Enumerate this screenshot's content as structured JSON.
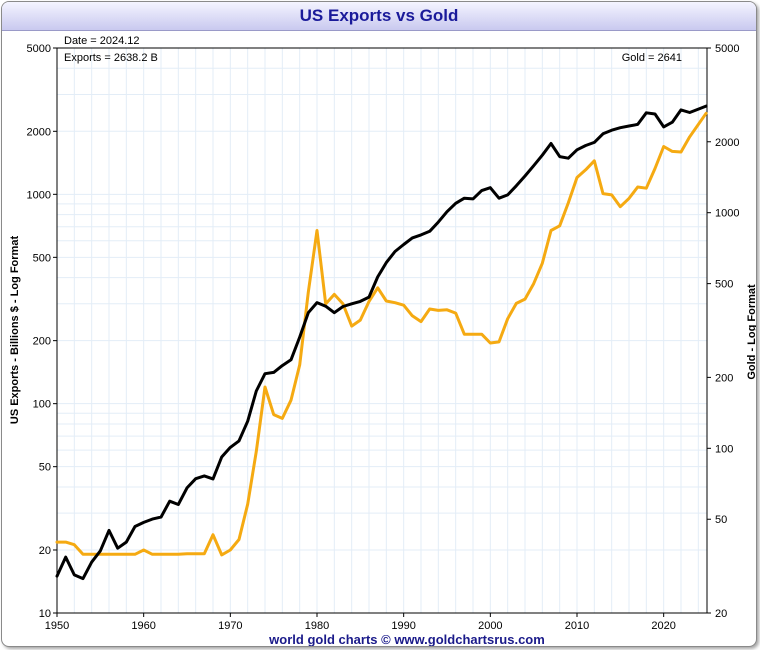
{
  "chart_data": {
    "type": "line",
    "title": "US Exports vs Gold",
    "ylabel_left": "US Exports - Billions $ - Log Format",
    "ylabel_right": "Gold - Log Format",
    "xlim": [
      1950,
      2025
    ],
    "ylim_left": [
      10,
      5000
    ],
    "ylim_right": [
      20,
      5000
    ],
    "scale": "log",
    "grid": true,
    "x_ticks": [
      1950,
      1960,
      1970,
      1980,
      1990,
      2000,
      2010,
      2020
    ],
    "left_ticks": [
      10,
      20,
      50,
      100,
      200,
      500,
      1000,
      2000,
      5000
    ],
    "right_ticks": [
      20,
      50,
      100,
      200,
      500,
      1000,
      2000,
      5000
    ],
    "annotations": {
      "date": "Date = 2024.12",
      "exports": "Exports = 2638.2 B",
      "gold": "Gold = 2641"
    },
    "series": [
      {
        "name": "US Exports",
        "axis": "left",
        "color": "#000000",
        "x": [
          1950,
          1951,
          1952,
          1953,
          1954,
          1955,
          1956,
          1957,
          1958,
          1959,
          1960,
          1961,
          1962,
          1963,
          1964,
          1965,
          1966,
          1967,
          1968,
          1969,
          1970,
          1971,
          1972,
          1973,
          1974,
          1975,
          1976,
          1977,
          1978,
          1979,
          1980,
          1981,
          1982,
          1983,
          1984,
          1985,
          1986,
          1987,
          1988,
          1989,
          1990,
          1991,
          1992,
          1993,
          1994,
          1995,
          1996,
          1997,
          1998,
          1999,
          2000,
          2001,
          2002,
          2003,
          2004,
          2005,
          2006,
          2007,
          2008,
          2009,
          2010,
          2011,
          2012,
          2013,
          2014,
          2015,
          2016,
          2017,
          2018,
          2019,
          2020,
          2021,
          2022,
          2023,
          2024.9
        ],
        "values": [
          15,
          18.5,
          15.2,
          14.6,
          17.5,
          19.8,
          24.8,
          20.4,
          21.8,
          25.9,
          27.1,
          28.1,
          28.7,
          34.2,
          33.0,
          39.6,
          43.8,
          45.2,
          43.7,
          55.6,
          61.8,
          66.4,
          82.5,
          115,
          139,
          141,
          152,
          162,
          208,
          272,
          304,
          292,
          272,
          291,
          300,
          308,
          323,
          403,
          472,
          533,
          576,
          619,
          640,
          666,
          737,
          826,
          906,
          958,
          951,
          1042,
          1075,
          958,
          994,
          1098,
          1223,
          1370,
          1538,
          1749,
          1515,
          1488,
          1631,
          1710,
          1770,
          1945,
          2025,
          2080,
          2121,
          2157,
          2452,
          2420,
          2100,
          2210,
          2530,
          2460,
          2638.2
        ]
      },
      {
        "name": "Gold",
        "axis": "right",
        "color": "#f5aa12",
        "x": [
          1950,
          1951,
          1952,
          1953,
          1954,
          1955,
          1956,
          1957,
          1958,
          1959,
          1960,
          1961,
          1962,
          1963,
          1964,
          1965,
          1966,
          1967,
          1968,
          1969,
          1970,
          1971,
          1972,
          1973,
          1974,
          1975,
          1976,
          1977,
          1978,
          1979,
          1980,
          1981,
          1982,
          1983,
          1984,
          1985,
          1986,
          1987,
          1988,
          1989,
          1990,
          1991,
          1992,
          1993,
          1994,
          1995,
          1996,
          1997,
          1998,
          1999,
          2000,
          2001,
          2002,
          2003,
          2004,
          2005,
          2006,
          2007,
          2008,
          2009,
          2010,
          2011,
          2012,
          2013,
          2014,
          2015,
          2016,
          2017,
          2018,
          2019,
          2020,
          2021,
          2022,
          2023,
          2024.9
        ],
        "values": [
          40,
          40,
          39,
          35.5,
          35.5,
          35.5,
          35.5,
          35.5,
          35.5,
          35.5,
          37,
          35.5,
          35.5,
          35.5,
          35.5,
          35.7,
          35.7,
          35.7,
          43,
          35.3,
          37,
          41,
          58,
          97,
          182,
          139,
          134,
          160,
          226,
          460,
          840,
          410,
          450,
          410,
          330,
          350,
          420,
          480,
          422,
          415,
          405,
          365,
          345,
          390,
          385,
          387,
          375,
          305,
          305,
          305,
          280,
          283,
          355,
          412,
          430,
          500,
          610,
          840,
          880,
          1100,
          1410,
          1520,
          1660,
          1205,
          1190,
          1060,
          1150,
          1285,
          1270,
          1540,
          1910,
          1820,
          1810,
          2100,
          2641
        ]
      }
    ]
  },
  "footer": "world gold charts © www.goldchartsrus.com"
}
